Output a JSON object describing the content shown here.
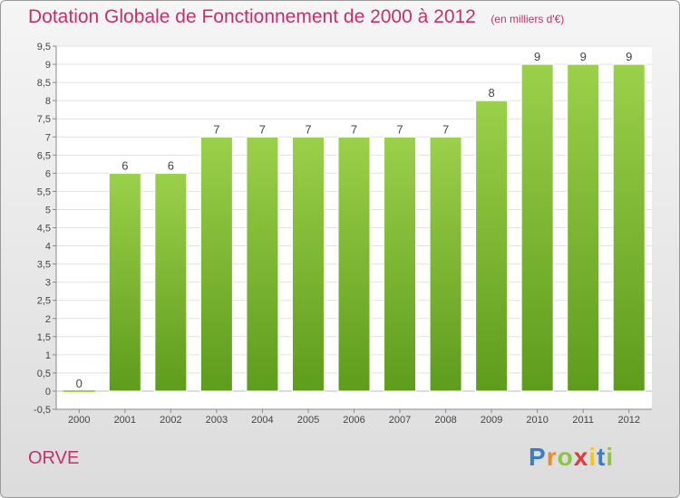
{
  "title": "Dotation Globale de Fonctionnement de 2000 à 2012",
  "unit_note": "(en milliers d'€)",
  "entity_name": "ORVE",
  "logo_text": "Proxiti",
  "colors": {
    "title": "#c5306b",
    "bar_top": "#9bd04a",
    "bar_bottom": "#5e9c1c",
    "axis": "#888888"
  },
  "chart_data": {
    "type": "bar",
    "title": "Dotation Globale de Fonctionnement de 2000 à 2012",
    "subtitle": "(en milliers d'€)",
    "categories": [
      "2000",
      "2001",
      "2002",
      "2003",
      "2004",
      "2005",
      "2006",
      "2007",
      "2008",
      "2009",
      "2010",
      "2011",
      "2012"
    ],
    "values": [
      0,
      6,
      6,
      7,
      7,
      7,
      7,
      7,
      7,
      8,
      9,
      9,
      9
    ],
    "data_labels": [
      "0",
      "6",
      "6",
      "7",
      "7",
      "7",
      "7",
      "7",
      "7",
      "8",
      "9",
      "9",
      "9"
    ],
    "ylim": [
      -0.5,
      9.5
    ],
    "yticks": [
      "-0,5",
      "0",
      "0,5",
      "1",
      "1,5",
      "2",
      "2,5",
      "3",
      "3,5",
      "4",
      "4,5",
      "5",
      "5,5",
      "6",
      "6,5",
      "7",
      "7,5",
      "8",
      "8,5",
      "9",
      "9,5"
    ],
    "grid": true
  }
}
